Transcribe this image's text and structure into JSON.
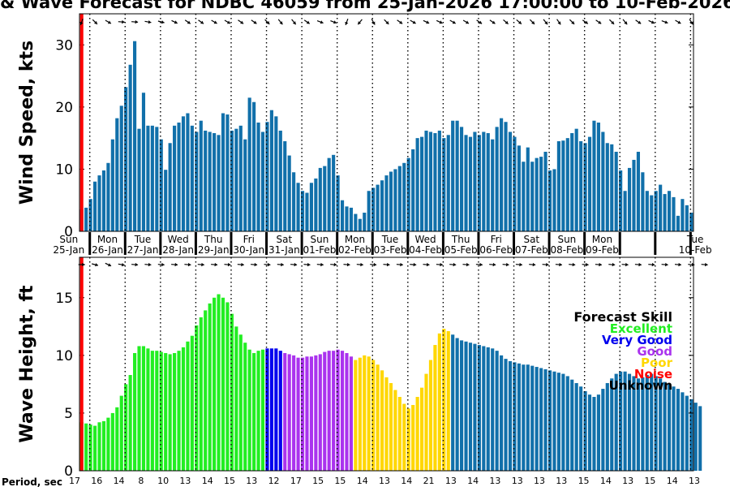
{
  "title": "& Wave Forecast for NDBC 46059 from 25-Jan-2026 17:00:00 to 10-Feb-2026",
  "colors": {
    "bar": "#1170aa",
    "current_time_line": "#ff0000",
    "skill_excellent": "#22ee22",
    "skill_verygood": "#0000ee",
    "skill_good": "#aa33ee",
    "skill_poor": "#ffd700",
    "skill_noise": "#ff0000",
    "skill_unknown": "#000000"
  },
  "chart_data": [
    {
      "type": "bar",
      "ylabel": "Wind Speed, kts",
      "ylim": [
        0,
        35
      ],
      "yticks": [
        0,
        10,
        20,
        30
      ],
      "day_labels": [
        {
          "dow": "Sun",
          "date": "25-Jan"
        },
        {
          "dow": "Mon",
          "date": "26-Jan"
        },
        {
          "dow": "Tue",
          "date": "27-Jan"
        },
        {
          "dow": "Wed",
          "date": "28-Jan"
        },
        {
          "dow": "Thu",
          "date": "29-Jan"
        },
        {
          "dow": "Fri",
          "date": "30-Jan"
        },
        {
          "dow": "Sat",
          "date": "31-Jan"
        },
        {
          "dow": "Sun",
          "date": "01-Feb"
        },
        {
          "dow": "Mon",
          "date": "02-Feb"
        },
        {
          "dow": "Tue",
          "date": "03-Feb"
        },
        {
          "dow": "Wed",
          "date": "04-Feb"
        },
        {
          "dow": "Thu",
          "date": "05-Feb"
        },
        {
          "dow": "Fri",
          "date": "06-Feb"
        },
        {
          "dow": "Sat",
          "date": "07-Feb"
        },
        {
          "dow": "Sun",
          "date": "08-Feb"
        },
        {
          "dow": "Mon",
          "date": "09-Feb"
        },
        {
          "dow": "Tue",
          "date": "10-Feb"
        }
      ],
      "values": [
        3.5,
        3.8,
        5.2,
        8.0,
        9.0,
        9.8,
        11.0,
        14.8,
        18.2,
        20.2,
        23.2,
        26.8,
        30.6,
        16.5,
        22.3,
        17.0,
        17.0,
        16.8,
        14.8,
        9.9,
        14.2,
        17.0,
        17.5,
        18.5,
        19.0,
        17.0,
        16.0,
        17.8,
        16.2,
        16.0,
        15.8,
        15.5,
        19.0,
        18.8,
        16.2,
        16.5,
        17.0,
        14.8,
        21.5,
        20.8,
        17.5,
        16.0,
        17.6,
        19.5,
        18.5,
        16.2,
        14.5,
        12.2,
        9.5,
        7.8,
        6.5,
        6.2,
        7.8,
        8.5,
        10.2,
        10.5,
        11.8,
        12.3,
        9.0,
        5.0,
        4.0,
        3.8,
        2.8,
        2.0,
        3.0,
        6.5,
        7.0,
        7.5,
        8.2,
        9.0,
        9.6,
        10.0,
        10.5,
        11.0,
        11.8,
        13.2,
        15.0,
        15.2,
        16.2,
        16.0,
        15.8,
        16.2,
        15.0,
        15.5,
        17.8,
        17.8,
        16.8,
        15.5,
        15.2,
        16.0,
        15.5,
        16.0,
        15.8,
        14.8,
        16.8,
        18.2,
        17.6,
        16.0,
        15.2,
        13.8,
        11.2,
        13.5,
        11.2,
        11.8,
        12.0,
        12.8,
        9.8,
        10.0,
        14.5,
        14.6,
        15.0,
        15.8,
        16.5,
        14.5,
        14.2,
        15.2,
        17.8,
        17.5,
        16.0,
        14.2,
        14.0,
        12.8,
        9.8,
        6.5,
        10.2,
        11.5,
        12.8,
        9.5,
        6.5,
        5.8,
        6.5,
        7.5,
        6.0,
        6.5,
        5.5,
        2.5,
        5.2,
        4.2,
        3.0
      ],
      "wind_direction_deg": [
        200,
        160,
        150,
        135,
        115,
        120,
        120,
        110,
        100,
        95,
        95,
        95,
        95,
        95,
        95,
        100,
        100,
        100,
        105,
        110,
        115,
        115,
        120,
        120,
        125,
        125,
        125,
        125,
        125,
        120,
        120,
        120,
        120,
        120,
        120,
        125,
        125,
        130,
        125,
        125,
        125,
        130,
        135,
        135,
        135,
        140,
        145,
        145,
        140,
        135,
        130,
        125,
        120,
        115,
        110,
        105,
        100,
        110,
        130,
        160,
        200,
        220,
        230,
        220,
        200,
        160,
        150,
        145,
        140,
        135,
        130,
        125,
        125,
        120,
        120,
        120,
        120,
        115,
        115,
        115,
        115,
        115,
        115,
        120,
        120,
        120,
        120,
        120,
        120,
        120,
        125,
        125,
        125,
        125,
        130,
        130,
        130,
        130,
        130,
        130,
        135,
        135,
        135,
        140,
        140,
        140,
        140,
        145,
        145,
        145,
        140,
        135,
        130,
        125,
        125,
        125,
        125,
        125,
        130,
        130,
        135,
        140,
        145,
        140,
        135,
        130,
        125,
        120,
        120,
        115,
        115,
        115,
        110,
        110,
        110,
        120,
        130,
        140,
        145,
        150,
        150
      ]
    },
    {
      "type": "bar",
      "ylabel": "Wave Height, ft",
      "ylim": [
        0,
        18.5
      ],
      "yticks": [
        0,
        5,
        10,
        15
      ],
      "values": [
        4.2,
        4.1,
        4.0,
        3.9,
        4.2,
        4.3,
        4.6,
        5.0,
        5.5,
        6.5,
        7.5,
        8.3,
        10.2,
        10.8,
        10.8,
        10.6,
        10.4,
        10.4,
        10.3,
        10.2,
        10.1,
        10.2,
        10.4,
        10.7,
        11.2,
        11.7,
        12.6,
        13.3,
        13.9,
        14.5,
        15.0,
        15.3,
        15.0,
        14.6,
        13.6,
        12.5,
        11.8,
        11.1,
        10.5,
        10.2,
        10.4,
        10.5,
        10.6,
        10.6,
        10.6,
        10.4,
        10.2,
        10.1,
        10.0,
        9.8,
        9.8,
        9.9,
        9.9,
        10.0,
        10.1,
        10.3,
        10.4,
        10.4,
        10.5,
        10.4,
        10.2,
        9.9,
        9.6,
        9.8,
        10.0,
        9.9,
        9.6,
        9.2,
        8.7,
        8.1,
        7.6,
        7.0,
        6.4,
        5.8,
        5.4,
        5.7,
        6.4,
        7.2,
        8.4,
        9.6,
        10.9,
        11.9,
        12.3,
        12.1,
        11.8,
        11.5,
        11.3,
        11.2,
        11.1,
        11.0,
        10.9,
        10.8,
        10.7,
        10.6,
        10.4,
        10.0,
        9.7,
        9.5,
        9.4,
        9.3,
        9.2,
        9.2,
        9.1,
        9.0,
        8.9,
        8.8,
        8.7,
        8.6,
        8.5,
        8.4,
        8.2,
        7.9,
        7.6,
        7.3,
        6.9,
        6.6,
        6.4,
        6.6,
        7.1,
        7.6,
        8.0,
        8.4,
        8.6,
        8.6,
        8.4,
        8.2,
        8.0,
        8.1,
        8.3,
        8.4,
        8.2,
        8.0,
        7.7,
        7.5,
        7.3,
        7.1,
        6.8,
        6.5,
        6.2,
        5.9,
        5.6
      ],
      "skill": [
        "Excellent",
        "Excellent",
        "Excellent",
        "Excellent",
        "Excellent",
        "Excellent",
        "Excellent",
        "Excellent",
        "Excellent",
        "Excellent",
        "Excellent",
        "Excellent",
        "Excellent",
        "Excellent",
        "Excellent",
        "Excellent",
        "Excellent",
        "Excellent",
        "Excellent",
        "Excellent",
        "Excellent",
        "Excellent",
        "Excellent",
        "Excellent",
        "Excellent",
        "Excellent",
        "Excellent",
        "Excellent",
        "Excellent",
        "Excellent",
        "Excellent",
        "Excellent",
        "Excellent",
        "Excellent",
        "Excellent",
        "Excellent",
        "Excellent",
        "Excellent",
        "Excellent",
        "Excellent",
        "Excellent",
        "Excellent",
        "Very Good",
        "Very Good",
        "Very Good",
        "Very Good",
        "Good",
        "Good",
        "Good",
        "Good",
        "Good",
        "Good",
        "Good",
        "Good",
        "Good",
        "Good",
        "Good",
        "Good",
        "Good",
        "Good",
        "Good",
        "Good",
        "Poor",
        "Poor",
        "Poor",
        "Poor",
        "Poor",
        "Poor",
        "Poor",
        "Poor",
        "Poor",
        "Poor",
        "Poor",
        "Poor",
        "Poor",
        "Poor",
        "Poor",
        "Poor",
        "Poor",
        "Poor",
        "Poor",
        "Poor",
        "Poor",
        "Poor",
        "Unknown",
        "Unknown",
        "Unknown",
        "Unknown",
        "Unknown",
        "Unknown",
        "Unknown",
        "Unknown",
        "Unknown",
        "Unknown",
        "Unknown",
        "Unknown",
        "Unknown",
        "Unknown",
        "Unknown",
        "Unknown",
        "Unknown",
        "Unknown",
        "Unknown",
        "Unknown",
        "Unknown",
        "Unknown",
        "Unknown",
        "Unknown",
        "Unknown",
        "Unknown",
        "Unknown",
        "Unknown",
        "Unknown",
        "Unknown",
        "Unknown",
        "Unknown",
        "Unknown",
        "Unknown",
        "Unknown",
        "Unknown",
        "Unknown",
        "Unknown",
        "Unknown",
        "Unknown",
        "Unknown",
        "Unknown",
        "Unknown",
        "Unknown",
        "Unknown",
        "Unknown",
        "Unknown",
        "Unknown",
        "Unknown",
        "Unknown",
        "Unknown",
        "Unknown",
        "Unknown",
        "Unknown",
        "Unknown",
        "Unknown",
        "Unknown",
        "Unknown"
      ],
      "wave_direction_deg": [
        90,
        95,
        100,
        105,
        110,
        115,
        115,
        110,
        105,
        100,
        100,
        95,
        95,
        95,
        95,
        95,
        95,
        95,
        95,
        95,
        95,
        95,
        95,
        95,
        95,
        95,
        95,
        95,
        95,
        95,
        95,
        95,
        95,
        95,
        95,
        95,
        95,
        95,
        95,
        95,
        95,
        95,
        95,
        95,
        95,
        95,
        95,
        95,
        95,
        95,
        95,
        95,
        95,
        95,
        95,
        95,
        95,
        95,
        95,
        95,
        95,
        95,
        95,
        95,
        95,
        95,
        95,
        95,
        95,
        95,
        95,
        95,
        95,
        95,
        95,
        95,
        95,
        95,
        95,
        95,
        95,
        95,
        95,
        95,
        95,
        95,
        95,
        95,
        95,
        95,
        95,
        95,
        95,
        95,
        95,
        95,
        95,
        95,
        95,
        95,
        95,
        95,
        95,
        95,
        95,
        95,
        95,
        95,
        95,
        95,
        95,
        95,
        95,
        95,
        95,
        95,
        95,
        95,
        95,
        95,
        95,
        95,
        95,
        95,
        95,
        95,
        95,
        95,
        95,
        95,
        95,
        95,
        95,
        95,
        95,
        95,
        95,
        95,
        95,
        95,
        95,
        95,
        95
      ],
      "legend": {
        "title": "Forecast Skill",
        "items": [
          "Excellent",
          "Very Good",
          "Good",
          "Poor",
          "Noise",
          "Unknown"
        ]
      },
      "period_label": "Period, sec",
      "period_values": [
        "17",
        "16",
        "14",
        "8",
        "10",
        "13",
        "14",
        "15",
        "13",
        "12",
        "17",
        "15",
        "15",
        "14",
        "13",
        "14",
        "21",
        "13",
        "14",
        "13",
        "13",
        "13",
        "13",
        "15",
        "14",
        "13",
        "15",
        "14",
        "13"
      ]
    }
  ]
}
